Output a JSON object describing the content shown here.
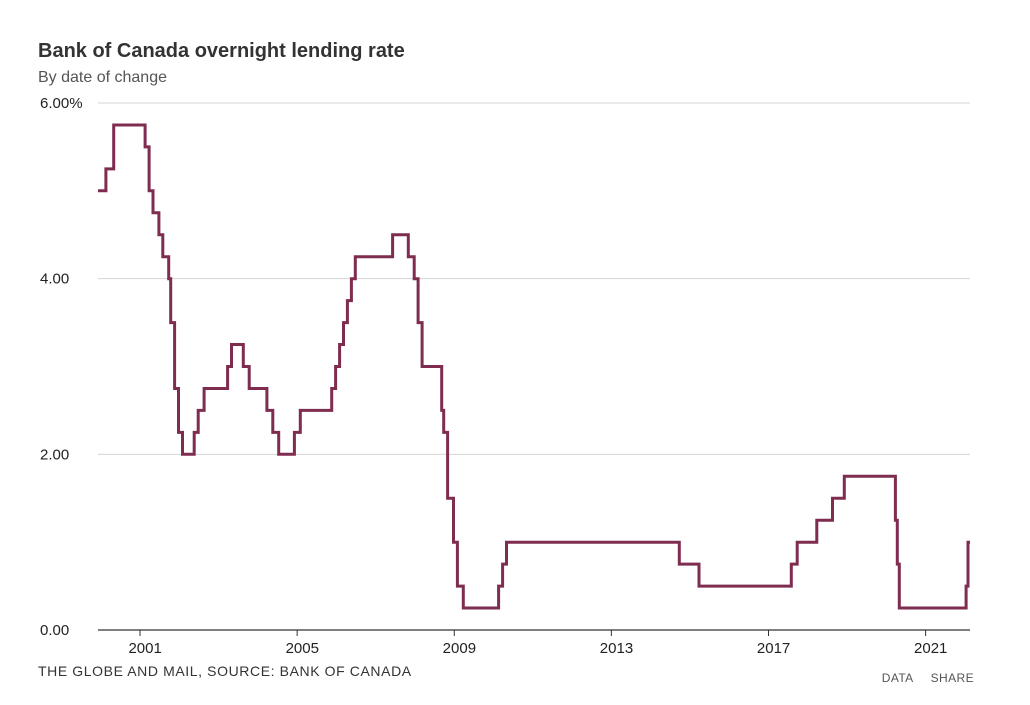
{
  "header": {
    "title": "Bank of Canada overnight lending rate",
    "subtitle": "By date of change"
  },
  "footer": {
    "source": "THE GLOBE AND MAIL, SOURCE: BANK OF CANADA",
    "data_link": "DATA",
    "share_link": "SHARE"
  },
  "colors": {
    "line": "#7e2c4f",
    "grid": "#d4d4d4",
    "axis": "#333333"
  },
  "chart_data": {
    "type": "line",
    "step": true,
    "title": "Bank of Canada overnight lending rate",
    "subtitle": "By date of change",
    "xlabel": "",
    "ylabel": "",
    "xlim": [
      1999.8,
      2022.0
    ],
    "ylim": [
      0,
      6
    ],
    "grid": "horizontal",
    "y_ticks": [
      {
        "value": 6,
        "label": "6.00%"
      },
      {
        "value": 4,
        "label": "4.00"
      },
      {
        "value": 2,
        "label": "2.00"
      },
      {
        "value": 0,
        "label": "0.00"
      }
    ],
    "x_ticks": [
      {
        "value": 2001,
        "label": "2001"
      },
      {
        "value": 2005,
        "label": "2005"
      },
      {
        "value": 2009,
        "label": "2009"
      },
      {
        "value": 2013,
        "label": "2013"
      },
      {
        "value": 2017,
        "label": "2017"
      },
      {
        "value": 2021,
        "label": "2021"
      }
    ],
    "series": [
      {
        "x": [
          1999.8,
          2000.0,
          2000.2,
          2001.0,
          2001.1,
          2001.2,
          2001.35,
          2001.45,
          2001.6,
          2001.65,
          2001.75,
          2001.85,
          2001.95,
          2002.05,
          2002.25,
          2002.35,
          2002.5,
          2003.1,
          2003.2,
          2003.5,
          2003.65,
          2004.1,
          2004.25,
          2004.4,
          2004.8,
          2004.95,
          2005.75,
          2005.85,
          2005.95,
          2006.05,
          2006.15,
          2006.25,
          2006.35,
          2007.3,
          2007.7,
          2007.85,
          2007.95,
          2008.05,
          2008.55,
          2008.6,
          2008.7,
          2008.85,
          2008.95,
          2009.1,
          2009.25,
          2010.0,
          2010.1,
          2010.2,
          2014.6,
          2015.1,
          2017.45,
          2017.6,
          2018.1,
          2018.5,
          2018.8,
          2020.1,
          2020.15,
          2020.2,
          2021.9,
          2021.95,
          2022.0
        ],
        "y": [
          5.0,
          5.25,
          5.75,
          5.5,
          5.0,
          4.75,
          4.5,
          4.25,
          4.0,
          3.5,
          2.75,
          2.25,
          2.0,
          2.0,
          2.25,
          2.5,
          2.75,
          3.0,
          3.25,
          3.0,
          2.75,
          2.5,
          2.25,
          2.0,
          2.25,
          2.5,
          2.75,
          3.0,
          3.25,
          3.5,
          3.75,
          4.0,
          4.25,
          4.5,
          4.25,
          4.0,
          3.5,
          3.0,
          2.5,
          2.25,
          1.5,
          1.0,
          0.5,
          0.25,
          0.25,
          0.5,
          0.75,
          1.0,
          0.75,
          0.5,
          0.75,
          1.0,
          1.25,
          1.5,
          1.75,
          1.25,
          0.75,
          0.25,
          0.5,
          1.0,
          1.0
        ]
      }
    ]
  }
}
